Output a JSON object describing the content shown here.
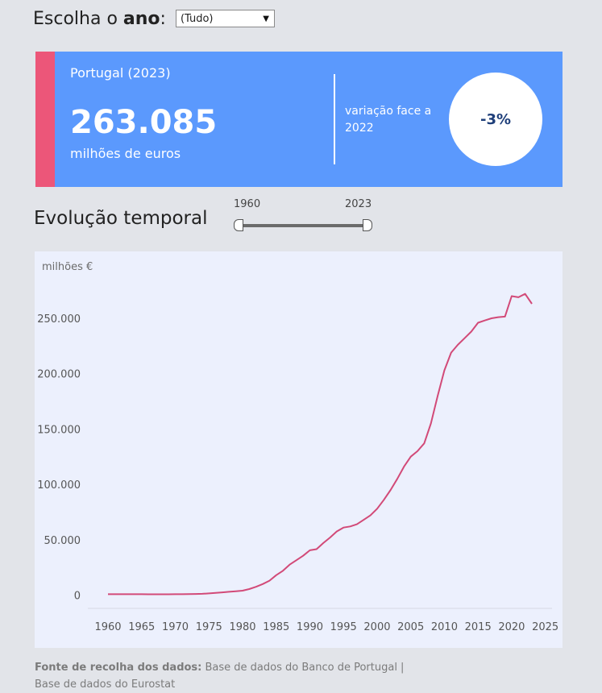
{
  "filter": {
    "label_prefix": "Escolha o ",
    "label_bold": "ano",
    "label_suffix": ":",
    "selected": "(Tudo)"
  },
  "kpi": {
    "title": "Portugal (2023)",
    "value": "263.085",
    "unit": "milhões de euros",
    "change_label": "variação face a 2022",
    "change_value": "-3%"
  },
  "section": {
    "title": "Evolução temporal"
  },
  "slider": {
    "min_label": "1960",
    "max_label": "2023",
    "min_value": 1960,
    "max_value": 2023
  },
  "colors": {
    "card_bg": "#5b99fd",
    "accent": "#ec5679",
    "line": "#d24a78",
    "chart_bg": "#ecf0fd"
  },
  "chart_data": {
    "type": "line",
    "ylabel": "milhões €",
    "xlim": [
      1957,
      2026
    ],
    "ylim": [
      -12000,
      290000
    ],
    "x_ticks": [
      1960,
      1965,
      1970,
      1975,
      1980,
      1985,
      1990,
      1995,
      2000,
      2005,
      2010,
      2015,
      2020,
      2025
    ],
    "x_tick_labels": [
      "1960",
      "1965",
      "1970",
      "1975",
      "1980",
      "1985",
      "1990",
      "1995",
      "2000",
      "2005",
      "2010",
      "2015",
      "2020",
      "2025"
    ],
    "y_ticks": [
      0,
      50000,
      100000,
      150000,
      200000,
      250000
    ],
    "y_tick_labels": [
      "0",
      "50.000",
      "100.000",
      "150.000",
      "200.000",
      "250.000"
    ],
    "grid": false,
    "series": [
      {
        "x": [
          1960,
          1961,
          1962,
          1963,
          1964,
          1965,
          1966,
          1967,
          1968,
          1969,
          1970,
          1971,
          1972,
          1973,
          1974,
          1975,
          1976,
          1977,
          1978,
          1979,
          1980,
          1981,
          1982,
          1983,
          1984,
          1985,
          1986,
          1987,
          1988,
          1989,
          1990,
          1991,
          1992,
          1993,
          1994,
          1995,
          1996,
          1997,
          1998,
          1999,
          2000,
          2001,
          2002,
          2003,
          2004,
          2005,
          2006,
          2007,
          2008,
          2009,
          2010,
          2011,
          2012,
          2013,
          2014,
          2015,
          2016,
          2017,
          2018,
          2019,
          2020,
          2021,
          2022,
          2023
        ],
        "y": [
          800,
          800,
          800,
          800,
          800,
          800,
          700,
          700,
          700,
          700,
          800,
          800,
          900,
          1000,
          1200,
          1500,
          2000,
          2500,
          3000,
          3500,
          4000,
          5500,
          7500,
          10000,
          13000,
          18000,
          22000,
          27500,
          31500,
          35500,
          40500,
          41500,
          47000,
          52000,
          57500,
          61000,
          62000,
          64000,
          68000,
          72000,
          78000,
          86000,
          95000,
          105000,
          116000,
          125000,
          130000,
          137000,
          155000,
          180000,
          203000,
          219000,
          226000,
          232000,
          238000,
          246000,
          248000,
          250000,
          251000,
          251500,
          270000,
          269000,
          272000,
          263085
        ]
      }
    ]
  },
  "source": {
    "label": "Fonte de recolha dos dados:",
    "text": " Base de dados do Banco de Portugal | Base de dados do Eurostat"
  }
}
